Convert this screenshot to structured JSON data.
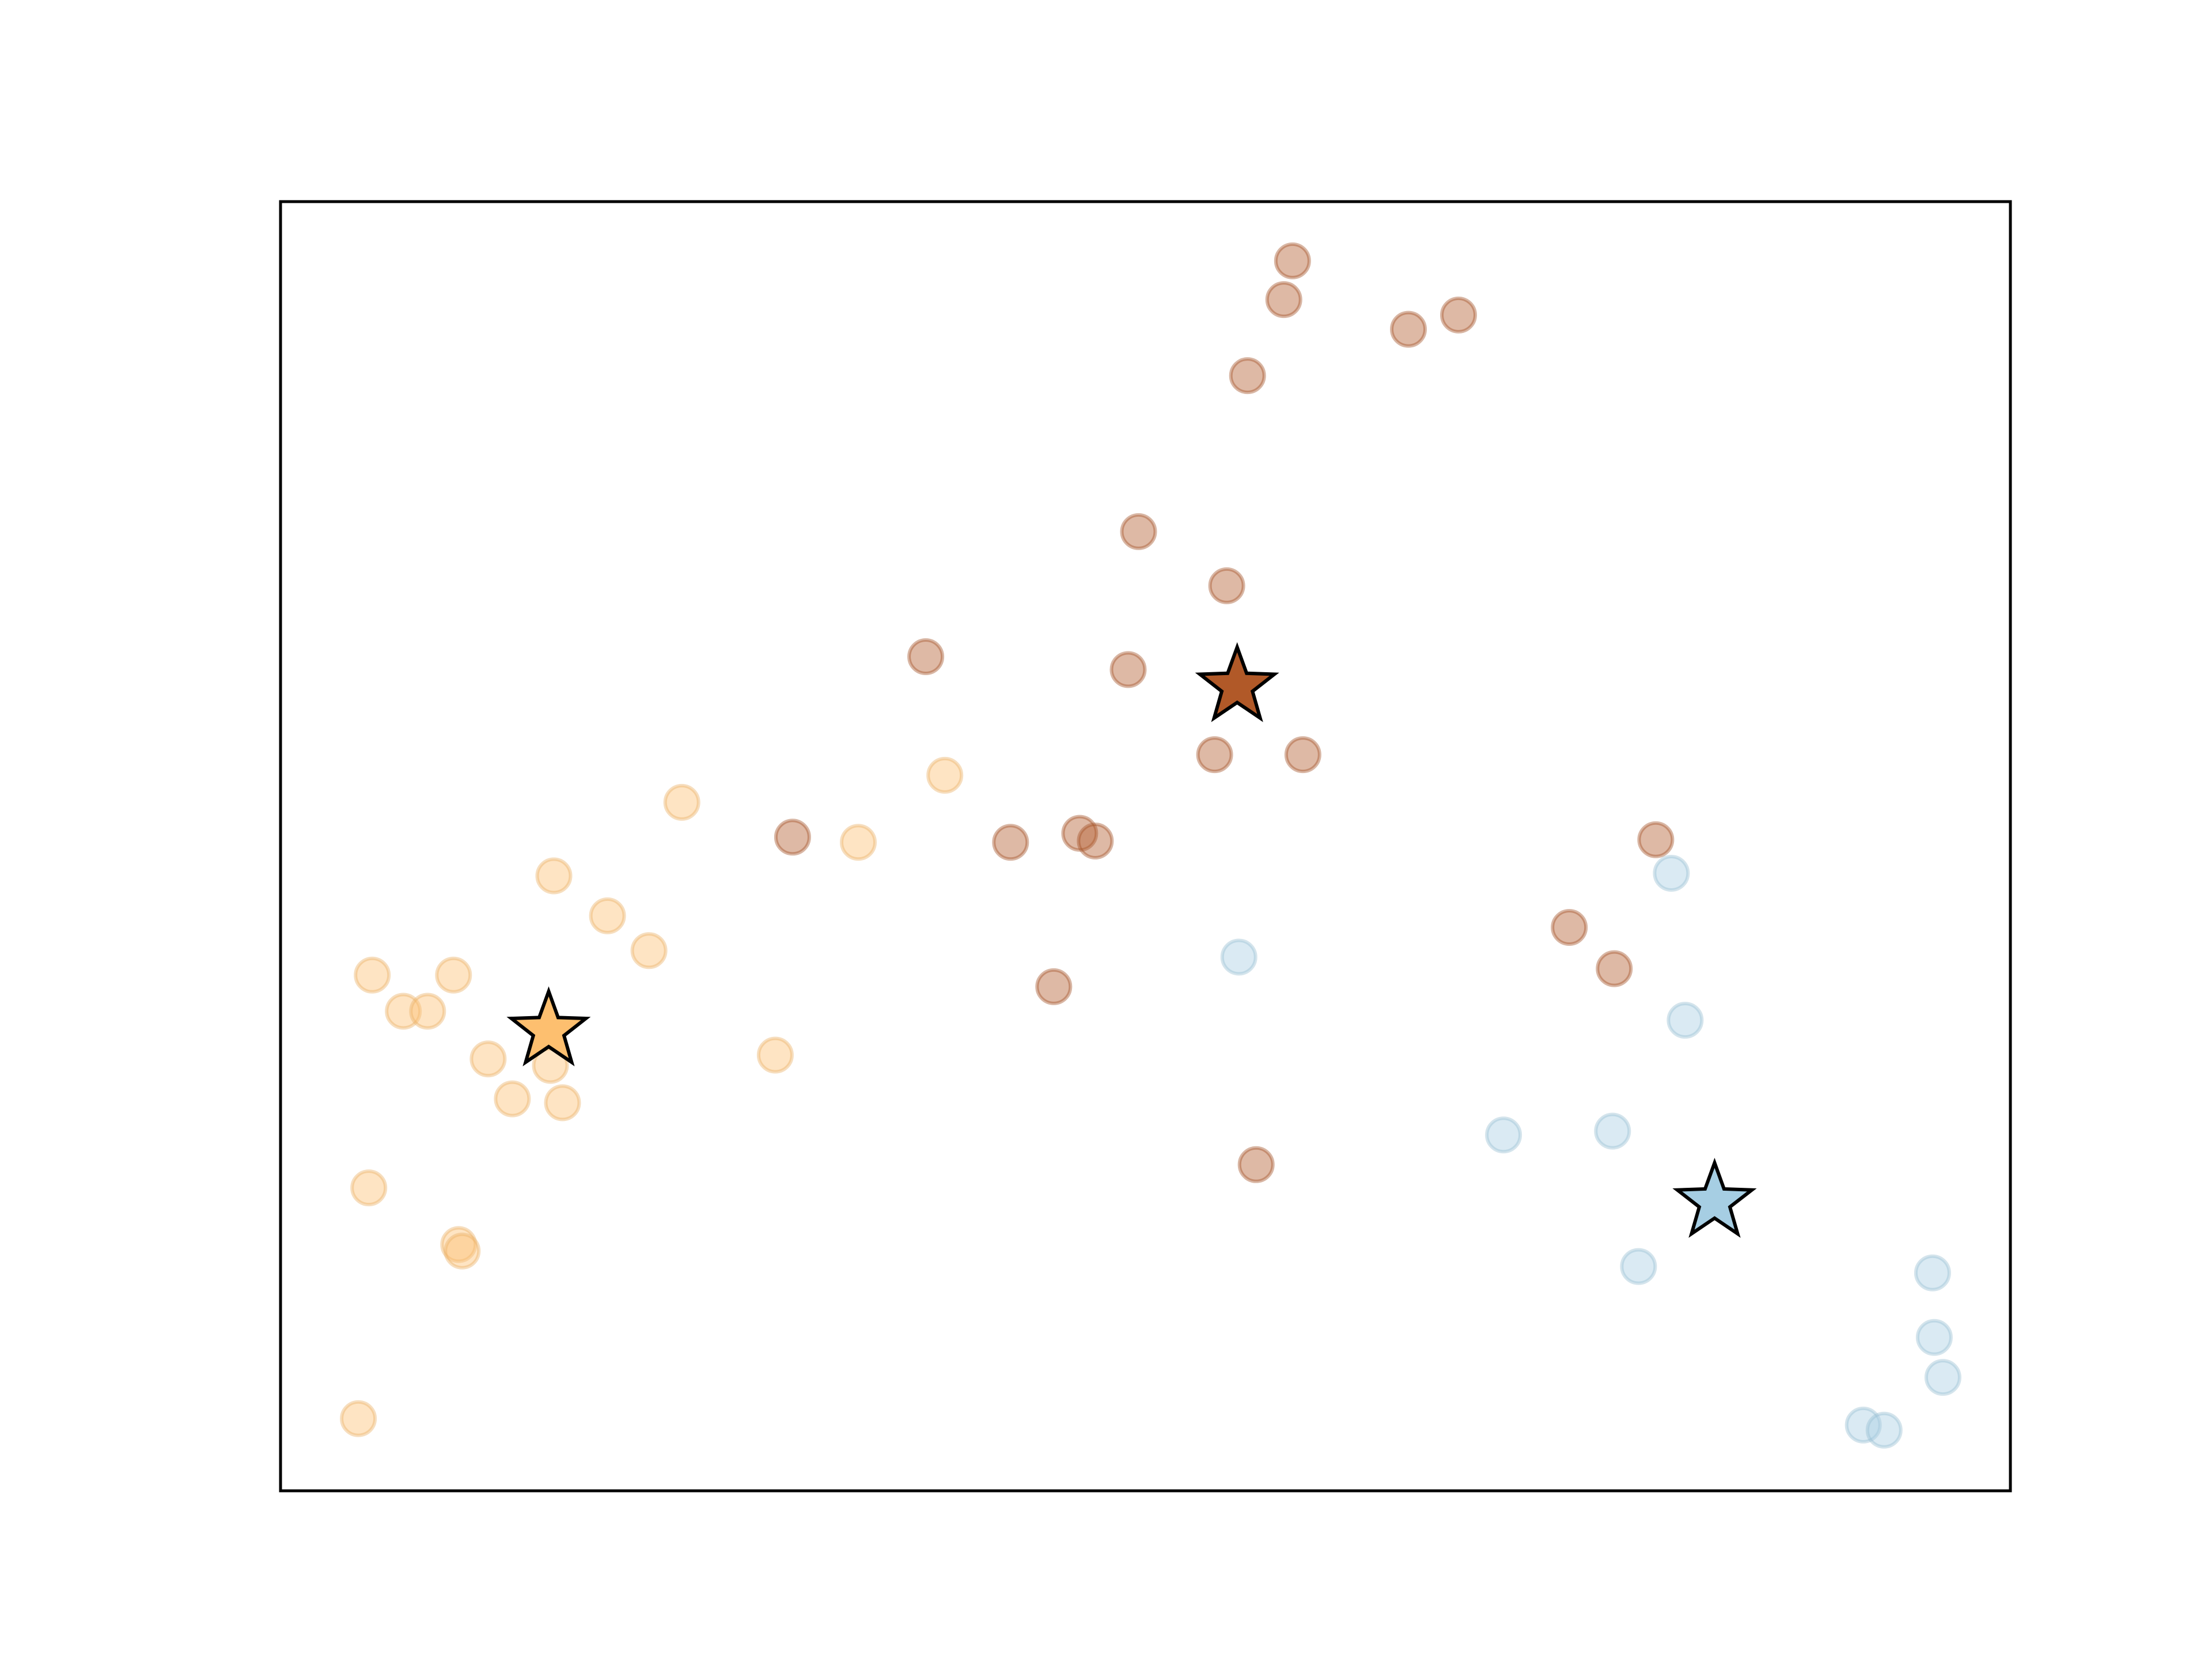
{
  "chart_data": {
    "type": "scatter",
    "title": "",
    "xlabel": "",
    "ylabel": "",
    "xlim": [
      0,
      100
    ],
    "ylim": [
      0,
      100
    ],
    "grid": false,
    "legend": "none",
    "axis_ticks": false,
    "series": [
      {
        "color": "#fdbf6f",
        "points": [
          {
            "x": 5.3,
            "y": 40.0
          },
          {
            "x": 7.1,
            "y": 37.2
          },
          {
            "x": 8.5,
            "y": 37.2
          },
          {
            "x": 10.0,
            "y": 40.0
          },
          {
            "x": 12.0,
            "y": 33.5
          },
          {
            "x": 13.4,
            "y": 30.4
          },
          {
            "x": 15.6,
            "y": 33.0
          },
          {
            "x": 16.3,
            "y": 30.1
          },
          {
            "x": 15.8,
            "y": 47.7
          },
          {
            "x": 18.9,
            "y": 44.6
          },
          {
            "x": 21.3,
            "y": 41.9
          },
          {
            "x": 23.2,
            "y": 53.4
          },
          {
            "x": 28.6,
            "y": 33.8
          },
          {
            "x": 33.4,
            "y": 50.3
          },
          {
            "x": 38.4,
            "y": 55.5
          },
          {
            "x": 5.1,
            "y": 23.5
          },
          {
            "x": 10.3,
            "y": 19.1
          },
          {
            "x": 10.5,
            "y": 18.6
          },
          {
            "x": 4.5,
            "y": 5.6
          }
        ],
        "centroid": {
          "x": 15.5,
          "y": 35.7
        }
      },
      {
        "color": "#b15928",
        "points": [
          {
            "x": 58.5,
            "y": 95.4
          },
          {
            "x": 58.0,
            "y": 92.4
          },
          {
            "x": 65.2,
            "y": 90.1
          },
          {
            "x": 68.1,
            "y": 91.2
          },
          {
            "x": 55.9,
            "y": 86.5
          },
          {
            "x": 49.6,
            "y": 74.4
          },
          {
            "x": 54.7,
            "y": 70.2
          },
          {
            "x": 37.3,
            "y": 64.7
          },
          {
            "x": 49.0,
            "y": 63.7
          },
          {
            "x": 54.0,
            "y": 57.1
          },
          {
            "x": 59.1,
            "y": 57.1
          },
          {
            "x": 29.6,
            "y": 50.7
          },
          {
            "x": 42.2,
            "y": 50.3
          },
          {
            "x": 46.2,
            "y": 51.0
          },
          {
            "x": 47.1,
            "y": 50.4
          },
          {
            "x": 79.5,
            "y": 50.5
          },
          {
            "x": 74.5,
            "y": 43.7
          },
          {
            "x": 77.1,
            "y": 40.5
          },
          {
            "x": 44.7,
            "y": 39.1
          },
          {
            "x": 56.4,
            "y": 25.3
          }
        ],
        "centroid": {
          "x": 55.3,
          "y": 62.4
        }
      },
      {
        "color": "#a6cee3",
        "points": [
          {
            "x": 80.4,
            "y": 47.9
          },
          {
            "x": 55.4,
            "y": 41.4
          },
          {
            "x": 81.2,
            "y": 36.5
          },
          {
            "x": 70.7,
            "y": 27.6
          },
          {
            "x": 77.0,
            "y": 27.9
          },
          {
            "x": 78.5,
            "y": 17.4
          },
          {
            "x": 95.5,
            "y": 16.9
          },
          {
            "x": 95.6,
            "y": 11.9
          },
          {
            "x": 96.1,
            "y": 8.8
          },
          {
            "x": 91.5,
            "y": 5.1
          },
          {
            "x": 92.7,
            "y": 4.7
          }
        ],
        "centroid": {
          "x": 82.9,
          "y": 22.4
        }
      }
    ]
  }
}
